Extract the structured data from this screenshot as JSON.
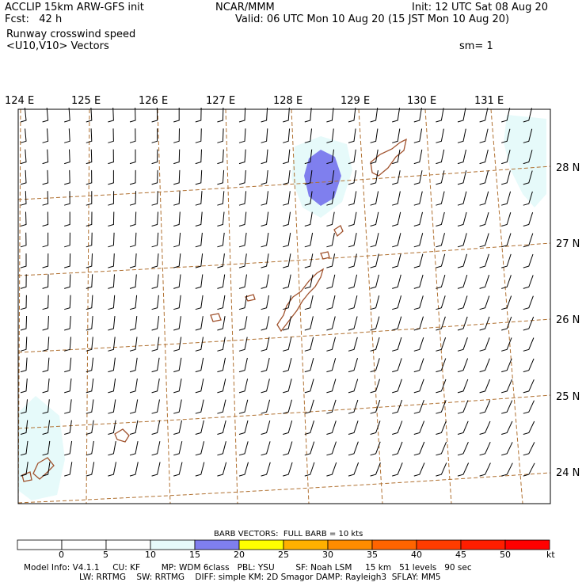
{
  "header": {
    "title_left": "ACCLIP 15km ARW-GFS init",
    "fcst": "Fcst:   42 h",
    "center": "NCAR/MMM",
    "init": "Init: 12 UTC Sat 08 Aug 20",
    "valid": "Valid: 06 UTC Mon 10 Aug 20 (15 JST Mon 10 Aug 20)",
    "field": "Runway crosswind speed",
    "vectors": "<U10,V10> Vectors",
    "smoothing": "sm= 1"
  },
  "map": {
    "lon_labels": [
      "124 E",
      "125 E",
      "126 E",
      "127 E",
      "128 E",
      "129 E",
      "130 E",
      "131 E"
    ],
    "lat_labels": [
      "28 N",
      "27 N",
      "26 N",
      "25 N",
      "24 N"
    ],
    "colors": {
      "grid": "#b07030",
      "coast": "#a0522d",
      "barb": "#000000",
      "shade_light": "#e6fafa",
      "shade_strong": "#7f7fee"
    }
  },
  "colorbar": {
    "title": "BARB VECTORS:  FULL BARB = 10 kts",
    "unit": "kt",
    "ticks": [
      "0",
      "5",
      "10",
      "15",
      "20",
      "25",
      "30",
      "35",
      "40",
      "45",
      "50"
    ],
    "colors": [
      "#ffffff",
      "#ffffff",
      "#ffffff",
      "#e6fafa",
      "#7f7fee",
      "#ffff00",
      "#ffb000",
      "#ff8c00",
      "#ff6400",
      "#ff3c00",
      "#ff1e00",
      "#ff0000"
    ]
  },
  "footer": {
    "line1": "Model Info: V4.1.1     CU: KF        MP: WDM 6class   PBL: YSU        SF: Noah LSM     15 km   51 levels   90 sec",
    "line2": "LW: RRTMG    SW: RRTMG    DIFF: simple KM: 2D Smagor DAMP: Rayleigh3  SFLAY: MM5"
  }
}
